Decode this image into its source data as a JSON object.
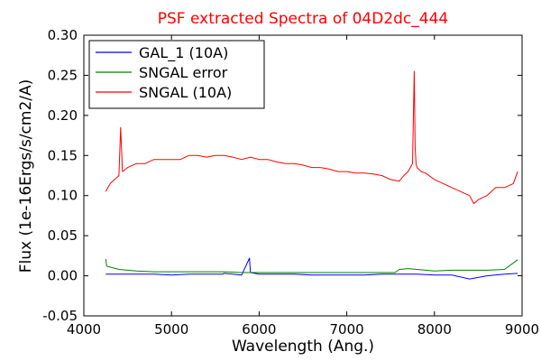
{
  "chart_data": {
    "type": "line",
    "title": "PSF extracted Spectra of 04D2dc_444",
    "xlabel": "Wavelength (Ang.)",
    "ylabel": "Flux (1e-16Ergs/s/cm2/A)",
    "xlim": [
      4000,
      9000
    ],
    "ylim": [
      -0.05,
      0.3
    ],
    "x_ticks": [
      4000,
      5000,
      6000,
      7000,
      8000,
      9000
    ],
    "y_ticks": [
      -0.05,
      0.0,
      0.05,
      0.1,
      0.15,
      0.2,
      0.25,
      0.3
    ],
    "x_tick_labels": [
      "4000",
      "5000",
      "6000",
      "7000",
      "8000",
      "9000"
    ],
    "y_tick_labels": [
      "-0.05",
      "0.00",
      "0.05",
      "0.10",
      "0.15",
      "0.20",
      "0.25",
      "0.30"
    ],
    "grid": false,
    "legend": {
      "placement": "top-left"
    },
    "colors": {
      "title": "#ff0000"
    },
    "series": [
      {
        "name": "GAL_1 (10A)",
        "color": "#0000ff",
        "x": [
          4250,
          4400,
          4600,
          4800,
          5000,
          5200,
          5400,
          5580,
          5600,
          5800,
          5890,
          5900,
          6000,
          6200,
          6400,
          6600,
          6800,
          7000,
          7200,
          7400,
          7600,
          7800,
          8000,
          8200,
          8400,
          8600,
          8800,
          8950
        ],
        "y": [
          0.002,
          0.002,
          0.002,
          0.002,
          0.001,
          0.002,
          0.002,
          0.002,
          0.003,
          0.001,
          0.022,
          0.004,
          0.002,
          0.002,
          0.002,
          0.001,
          0.001,
          0.001,
          0.001,
          0.002,
          0.002,
          0.002,
          0.001,
          0.001,
          -0.004,
          0.0,
          0.002,
          0.003
        ]
      },
      {
        "name": "SNGAL error",
        "color": "#008000",
        "x": [
          4250,
          4260,
          4400,
          4600,
          4800,
          5000,
          5200,
          5400,
          5600,
          5800,
          6000,
          6200,
          6400,
          6600,
          6800,
          7000,
          7200,
          7400,
          7550,
          7600,
          7700,
          7800,
          8000,
          8200,
          8400,
          8600,
          8800,
          8950
        ],
        "y": [
          0.021,
          0.012,
          0.008,
          0.006,
          0.005,
          0.005,
          0.005,
          0.005,
          0.005,
          0.004,
          0.004,
          0.004,
          0.004,
          0.004,
          0.004,
          0.004,
          0.004,
          0.004,
          0.004,
          0.008,
          0.009,
          0.008,
          0.006,
          0.007,
          0.007,
          0.007,
          0.008,
          0.02
        ]
      },
      {
        "name": "SNGAL (10A)",
        "color": "#ff0000",
        "x": [
          4250,
          4300,
          4400,
          4420,
          4440,
          4500,
          4600,
          4700,
          4800,
          4900,
          5000,
          5100,
          5200,
          5300,
          5400,
          5500,
          5600,
          5700,
          5800,
          5900,
          6000,
          6100,
          6200,
          6300,
          6400,
          6500,
          6600,
          6700,
          6800,
          6900,
          7000,
          7100,
          7200,
          7300,
          7400,
          7500,
          7600,
          7650,
          7700,
          7750,
          7770,
          7780,
          7790,
          7800,
          7850,
          7900,
          8000,
          8100,
          8200,
          8300,
          8400,
          8450,
          8500,
          8600,
          8700,
          8800,
          8900,
          8950
        ],
        "y": [
          0.105,
          0.115,
          0.125,
          0.185,
          0.13,
          0.135,
          0.14,
          0.14,
          0.145,
          0.145,
          0.145,
          0.145,
          0.15,
          0.15,
          0.148,
          0.15,
          0.15,
          0.148,
          0.145,
          0.148,
          0.145,
          0.145,
          0.142,
          0.14,
          0.14,
          0.138,
          0.135,
          0.135,
          0.133,
          0.13,
          0.13,
          0.128,
          0.128,
          0.127,
          0.125,
          0.12,
          0.118,
          0.125,
          0.13,
          0.14,
          0.255,
          0.16,
          0.14,
          0.135,
          0.13,
          0.128,
          0.12,
          0.115,
          0.11,
          0.105,
          0.1,
          0.09,
          0.095,
          0.1,
          0.11,
          0.11,
          0.115,
          0.13
        ]
      }
    ]
  }
}
